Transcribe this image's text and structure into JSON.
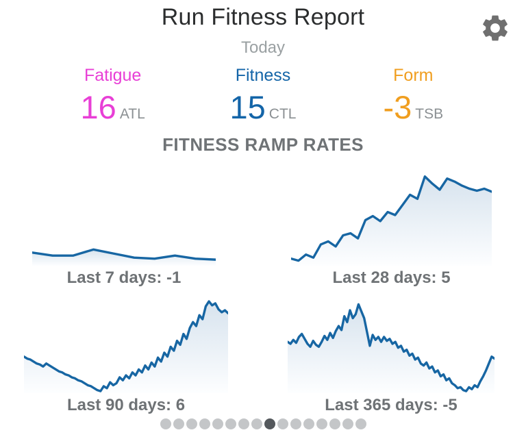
{
  "header": {
    "title": "Run Fitness Report",
    "subtitle": "Today",
    "settings_icon": "gear-icon"
  },
  "metrics": [
    {
      "label": "Fatigue",
      "value": "16",
      "unit": "ATL",
      "color": "#e83fd6"
    },
    {
      "label": "Fitness",
      "value": "15",
      "unit": "CTL",
      "color": "#1465a8"
    },
    {
      "label": "Form",
      "value": "-3",
      "unit": "TSB",
      "color": "#f09e1f"
    }
  ],
  "section_title": "FITNESS RAMP RATES",
  "chart_data": [
    {
      "type": "area",
      "title": "Last 7 days: -1",
      "period": "Last 7 days",
      "ramp_rate": -1,
      "line_color": "#1766a3",
      "fill_top": "#d7e3ee",
      "fill_bottom": "#fdfeff",
      "ylim": [
        0,
        100
      ],
      "grid": false,
      "legend": false,
      "values": [
        13,
        10,
        10,
        16,
        12,
        8,
        7,
        10,
        7,
        6
      ]
    },
    {
      "type": "area",
      "title": "Last 28 days: 5",
      "period": "Last 28 days",
      "ramp_rate": 5,
      "line_color": "#1766a3",
      "fill_top": "#d7e3ee",
      "fill_bottom": "#fdfeff",
      "ylim": [
        0,
        100
      ],
      "grid": false,
      "legend": false,
      "values": [
        7,
        5,
        11,
        8,
        21,
        24,
        19,
        30,
        32,
        27,
        45,
        49,
        44,
        53,
        50,
        60,
        70,
        66,
        88,
        81,
        75,
        86,
        83,
        79,
        76,
        74,
        76,
        73
      ]
    },
    {
      "type": "area",
      "title": "Last 90 days: 6",
      "period": "Last 90 days",
      "ramp_rate": 6,
      "line_color": "#1766a3",
      "fill_top": "#d7e3ee",
      "fill_bottom": "#fdfeff",
      "ylim": [
        0,
        100
      ],
      "grid": false,
      "legend": false,
      "values": [
        37,
        35,
        34,
        32,
        30,
        29,
        27,
        30,
        28,
        26,
        24,
        22,
        21,
        19,
        18,
        16,
        15,
        13,
        12,
        10,
        8,
        7,
        5,
        3,
        2,
        7,
        5,
        11,
        8,
        10,
        16,
        13,
        18,
        15,
        21,
        18,
        24,
        21,
        28,
        24,
        31,
        27,
        36,
        32,
        41,
        37,
        47,
        43,
        53,
        49,
        60,
        55,
        66,
        72,
        68,
        79,
        75,
        88,
        93,
        89,
        91,
        85,
        82,
        84,
        81
      ]
    },
    {
      "type": "area",
      "title": "Last 365 days: -5",
      "period": "Last 365 days",
      "ramp_rate": -5,
      "line_color": "#1766a3",
      "fill_top": "#d7e3ee",
      "fill_bottom": "#fdfeff",
      "ylim": [
        0,
        100
      ],
      "grid": false,
      "legend": false,
      "values": [
        52,
        50,
        54,
        51,
        57,
        60,
        55,
        50,
        47,
        53,
        49,
        47,
        52,
        58,
        54,
        61,
        56,
        63,
        68,
        64,
        78,
        72,
        84,
        76,
        80,
        90,
        83,
        76,
        62,
        48,
        59,
        54,
        57,
        52,
        57,
        53,
        55,
        50,
        52,
        46,
        48,
        42,
        44,
        38,
        40,
        34,
        36,
        30,
        28,
        31,
        25,
        27,
        21,
        23,
        17,
        19,
        13,
        15,
        10,
        8,
        5,
        6,
        3,
        2,
        6,
        4,
        8,
        6,
        12,
        17,
        23,
        30,
        37,
        35
      ]
    }
  ],
  "pagination": {
    "total": 16,
    "active_index": 8
  }
}
